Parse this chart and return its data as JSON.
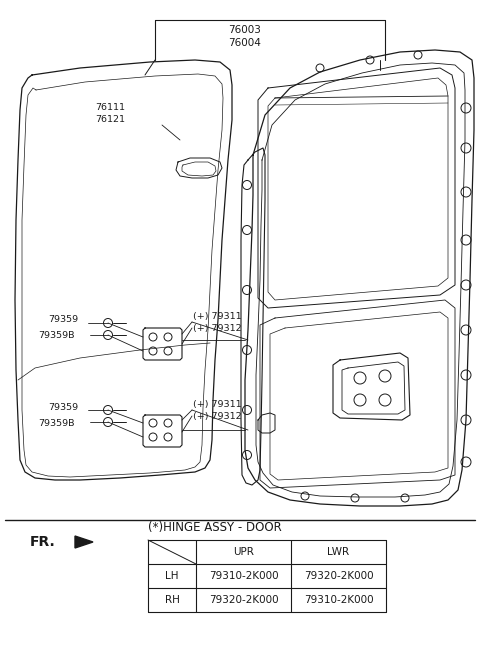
{
  "bg_color": "#ffffff",
  "line_color": "#1a1a1a",
  "label_76003": "76003",
  "label_76004": "76004",
  "label_76111": "76111",
  "label_76121": "76121",
  "label_79311_u": "(+) 79311",
  "label_79312_u": "(+) 79312",
  "label_79311_l": "(+) 79311",
  "label_79312_l": "(+) 79312",
  "label_79359_u": "79359",
  "label_79359B_u": "79359B",
  "label_79359_l": "79359",
  "label_79359B_l": "79359B",
  "hinge_title": "(*)HINGE ASSY - DOOR",
  "table_headers": [
    "",
    "UPR",
    "LWR"
  ],
  "table_rows": [
    [
      "LH",
      "79310-2K000",
      "79320-2K000"
    ],
    [
      "RH",
      "79320-2K000",
      "79310-2K000"
    ]
  ],
  "fr_label": "FR."
}
